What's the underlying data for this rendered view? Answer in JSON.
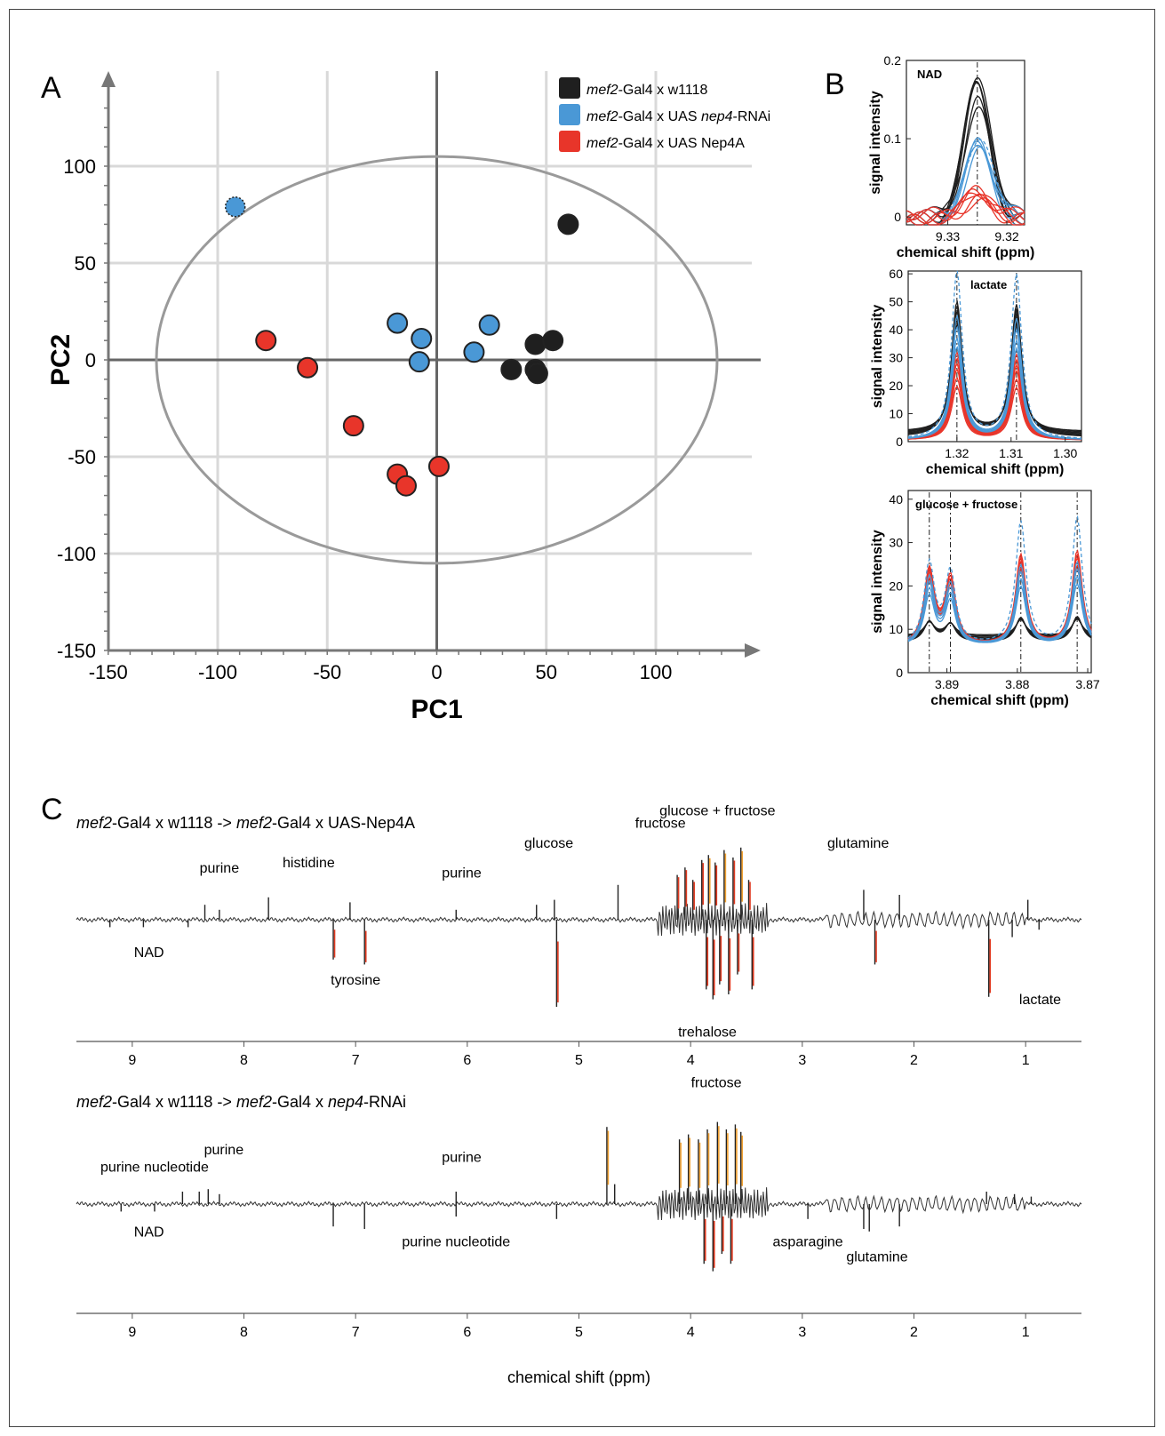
{
  "panel_labels": {
    "a": "A",
    "b": "B",
    "c": "C"
  },
  "colors": {
    "black_group": "#1f1f1f",
    "blue_group": "#4a98d6",
    "red_group": "#e8352a",
    "axis": "#777777",
    "grid": "#d9d9d9",
    "ellipse": "#9a9a9a"
  },
  "chart_data": [
    {
      "panel": "A",
      "type": "scatter",
      "xlabel": "PC1",
      "ylabel": "PC2",
      "xlim": [
        -150,
        150
      ],
      "ylim": [
        -150,
        150
      ],
      "xticks": [
        -150,
        -100,
        -50,
        0,
        50,
        100
      ],
      "yticks": [
        100,
        50,
        0,
        -50,
        -100,
        -150
      ],
      "grid": true,
      "legend_position": "top-right",
      "ellipse": {
        "cx": 0,
        "cy": 0,
        "rx": 128,
        "ry": 105
      },
      "series": [
        {
          "name_italic": "mef2",
          "name_rest": "-Gal4 x w1118",
          "color": "#1f1f1f",
          "points": [
            [
              60,
              70
            ],
            [
              45,
              8
            ],
            [
              53,
              10
            ],
            [
              34,
              -5
            ],
            [
              45,
              -5
            ],
            [
              46,
              -7
            ]
          ]
        },
        {
          "name_italic": "mef2",
          "name_rest": "-Gal4 x UAS ",
          "name_italic2": "nep4",
          "name_rest2": "-RNAi",
          "color": "#4a98d6",
          "points": [
            [
              -18,
              19
            ],
            [
              -7,
              11
            ],
            [
              -8,
              -1
            ],
            [
              17,
              4
            ],
            [
              24,
              18
            ]
          ],
          "outlier": [
            -92,
            79
          ]
        },
        {
          "name_italic": "mef2",
          "name_rest": "-Gal4 x UAS Nep4A",
          "color": "#e8352a",
          "points": [
            [
              -78,
              10
            ],
            [
              -59,
              -4
            ],
            [
              -38,
              -34
            ],
            [
              -18,
              -59
            ],
            [
              -14,
              -65
            ],
            [
              1,
              -55
            ]
          ]
        }
      ]
    },
    {
      "panel": "B1",
      "type": "line",
      "annotation": "NAD",
      "xlabel": "chemical shift (ppm)",
      "ylabel": "signal intensity",
      "xlim": [
        9.337,
        9.317
      ],
      "ylim": [
        -0.01,
        0.2
      ],
      "xticks": [
        9.33,
        9.32
      ],
      "yticks": [
        0,
        0.1,
        0.2
      ],
      "peak_markers": [
        9.325
      ],
      "groups": [
        {
          "color": "#1f1f1f",
          "heights": [
            0.19,
            0.18,
            0.17,
            0.16,
            0.15,
            0.14
          ]
        },
        {
          "color": "#4a98d6",
          "heights": [
            0.11,
            0.1,
            0.095,
            0.09,
            0.085
          ]
        },
        {
          "color": "#e8352a",
          "heights": [
            0.04,
            0.035,
            0.03,
            0.028,
            0.025,
            0.02
          ]
        }
      ]
    },
    {
      "panel": "B2",
      "type": "line",
      "annotation": "lactate",
      "xlabel": "chemical shift (ppm)",
      "ylabel": "signal intensity",
      "xlim": [
        1.329,
        1.297
      ],
      "ylim": [
        0,
        61
      ],
      "xticks": [
        1.32,
        1.31,
        1.3
      ],
      "yticks": [
        0,
        10,
        20,
        30,
        40,
        50,
        60
      ],
      "peak_markers": [
        1.32,
        1.309
      ],
      "groups": [
        {
          "color": "#1f1f1f",
          "heights": [
            48,
            46,
            44,
            42,
            40,
            38
          ]
        },
        {
          "color": "#4a98d6",
          "heights": [
            60,
            44,
            40,
            36,
            33
          ]
        },
        {
          "color": "#e8352a",
          "heights": [
            31,
            29,
            27,
            25,
            22,
            19
          ]
        }
      ]
    },
    {
      "panel": "B3",
      "type": "line",
      "annotation": "glucose + fructose",
      "xlabel": "chemical shift (ppm)",
      "ylabel": "signal intensity",
      "xlim": [
        3.8955,
        3.8695
      ],
      "ylim": [
        0,
        42
      ],
      "xticks": [
        3.89,
        3.88,
        3.87
      ],
      "yticks": [
        0,
        10,
        20,
        30,
        40
      ],
      "peak_markers": [
        3.8925,
        3.8895,
        3.8795,
        3.8715
      ],
      "groups": [
        {
          "color": "#1f1f1f",
          "heights": [
            14,
            13,
            12,
            11,
            10,
            9
          ]
        },
        {
          "color": "#4a98d6",
          "heights": [
            28,
            23,
            21,
            19,
            17
          ]
        },
        {
          "color": "#e8352a",
          "heights": [
            26,
            25,
            24,
            23,
            22,
            21
          ]
        }
      ]
    },
    {
      "panel": "C1",
      "type": "line",
      "title_parts": [
        {
          "t": "mef2",
          "i": true
        },
        {
          "t": "-Gal4 x w1118 -> ",
          "i": false
        },
        {
          "t": "mef2",
          "i": true
        },
        {
          "t": "-Gal4 x UAS-Nep4A",
          "i": false
        }
      ],
      "xlim": [
        9.5,
        0.5
      ],
      "xticks": [
        9,
        8,
        7,
        6,
        5,
        4,
        3,
        2,
        1
      ],
      "peaks": [
        [
          8.35,
          0.6
        ],
        [
          8.22,
          0.4
        ],
        [
          7.78,
          0.9
        ],
        [
          7.05,
          0.7
        ],
        [
          6.1,
          0.4
        ],
        [
          5.38,
          0.6
        ],
        [
          5.22,
          0.8
        ],
        [
          4.65,
          1.4
        ],
        [
          9.2,
          -0.3
        ],
        [
          8.9,
          -0.3
        ],
        [
          8.5,
          -0.3
        ],
        [
          7.2,
          -1.6
        ],
        [
          6.92,
          -1.8
        ],
        [
          5.2,
          -3.5
        ],
        [
          4.12,
          1.8
        ],
        [
          4.05,
          2.1
        ],
        [
          3.98,
          1.6
        ],
        [
          3.9,
          2.4
        ],
        [
          3.84,
          2.6
        ],
        [
          3.78,
          2.3
        ],
        [
          3.7,
          2.8
        ],
        [
          3.62,
          2.5
        ],
        [
          3.55,
          2.9
        ],
        [
          3.48,
          1.6
        ],
        [
          3.86,
          -2.8
        ],
        [
          3.8,
          -3.2
        ],
        [
          3.74,
          -2.6
        ],
        [
          3.66,
          -3.0
        ],
        [
          3.58,
          -2.2
        ],
        [
          3.45,
          -2.8
        ],
        [
          2.45,
          1.2
        ],
        [
          2.13,
          1.0
        ],
        [
          2.35,
          -1.8
        ],
        [
          1.33,
          -3.1
        ],
        [
          1.12,
          -0.7
        ],
        [
          0.98,
          0.8
        ],
        [
          0.88,
          -0.4
        ]
      ],
      "labels": [
        {
          "text": "purine",
          "x": 8.22,
          "y": 1.9
        },
        {
          "text": "histidine",
          "x": 7.42,
          "y": 2.1
        },
        {
          "text": "purine",
          "x": 6.05,
          "y": 1.7
        },
        {
          "text": "glucose",
          "x": 5.27,
          "y": 2.9
        },
        {
          "text": "fructose",
          "x": 4.27,
          "y": 3.7
        },
        {
          "text": "glucose + fructose",
          "x": 3.76,
          "y": 4.2
        },
        {
          "text": "glutamine",
          "x": 2.5,
          "y": 2.9
        },
        {
          "text": "NAD",
          "x": 8.85,
          "y": -1.5
        },
        {
          "text": "tyrosine",
          "x": 7.0,
          "y": -2.6
        },
        {
          "text": "trehalose",
          "x": 3.85,
          "y": -4.7
        },
        {
          "text": "lactate",
          "x": 0.87,
          "y": -3.4
        }
      ]
    },
    {
      "panel": "C2",
      "type": "line",
      "title_parts": [
        {
          "t": "mef2",
          "i": true
        },
        {
          "t": "-Gal4 x w1118 -> ",
          "i": false
        },
        {
          "t": "mef2",
          "i": true
        },
        {
          "t": "-Gal4 x ",
          "i": false
        },
        {
          "t": "nep4",
          "i": true
        },
        {
          "t": "-RNAi",
          "i": false
        }
      ],
      "xlabel": "chemical shift (ppm)",
      "xlim": [
        9.5,
        0.5
      ],
      "xticks": [
        9,
        8,
        7,
        6,
        5,
        4,
        3,
        2,
        1
      ],
      "peaks": [
        [
          8.55,
          0.5
        ],
        [
          8.4,
          0.5
        ],
        [
          8.32,
          0.6
        ],
        [
          8.22,
          0.4
        ],
        [
          6.1,
          0.5
        ],
        [
          4.75,
          3.1
        ],
        [
          4.68,
          0.8
        ],
        [
          9.1,
          -0.3
        ],
        [
          8.8,
          -0.3
        ],
        [
          7.2,
          -0.9
        ],
        [
          6.92,
          -1.0
        ],
        [
          6.1,
          -0.5
        ],
        [
          5.2,
          -0.6
        ],
        [
          4.1,
          2.6
        ],
        [
          4.02,
          2.8
        ],
        [
          3.93,
          2.6
        ],
        [
          3.85,
          3.0
        ],
        [
          3.76,
          3.3
        ],
        [
          3.68,
          3.0
        ],
        [
          3.6,
          3.2
        ],
        [
          3.55,
          2.9
        ],
        [
          3.88,
          -2.4
        ],
        [
          3.8,
          -2.7
        ],
        [
          3.72,
          -2.0
        ],
        [
          3.64,
          -2.4
        ],
        [
          2.95,
          -0.6
        ],
        [
          2.45,
          -1.0
        ],
        [
          2.4,
          -1.1
        ],
        [
          2.13,
          -0.9
        ],
        [
          1.35,
          0.5
        ],
        [
          1.1,
          0.4
        ],
        [
          0.95,
          0.3
        ]
      ],
      "labels": [
        {
          "text": "purine nucleotide",
          "x": 8.8,
          "y": 1.3
        },
        {
          "text": "purine",
          "x": 8.18,
          "y": 2.0
        },
        {
          "text": "purine",
          "x": 6.05,
          "y": 1.7
        },
        {
          "text": "fructose",
          "x": 3.77,
          "y": 4.7
        },
        {
          "text": "NAD",
          "x": 8.85,
          "y": -1.3
        },
        {
          "text": "purine nucleotide",
          "x": 6.1,
          "y": -1.7
        },
        {
          "text": "asparagine",
          "x": 2.95,
          "y": -1.7
        },
        {
          "text": "glutamine",
          "x": 2.33,
          "y": -2.3
        }
      ]
    }
  ]
}
